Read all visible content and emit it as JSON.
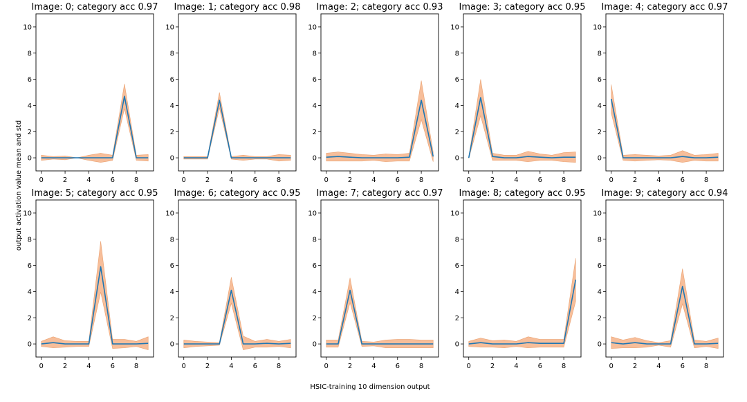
{
  "figure": {
    "xlabel": "HSIC-training 10 dimension output",
    "ylabel": "output activation value mean and std"
  },
  "colors": {
    "mean_line": "#1f77b4",
    "std_band": "#f4a878",
    "std_band_edge": "#e08040",
    "frame": "#000000"
  },
  "chart_data": [
    {
      "type": "line",
      "title": "Image: 0; category acc 0.97",
      "x": [
        0,
        1,
        2,
        3,
        4,
        5,
        6,
        7,
        8,
        9
      ],
      "xlim": [
        -0.45,
        9.45
      ],
      "ylim": [
        -1,
        11
      ],
      "xticks": [
        0,
        2,
        4,
        6,
        8
      ],
      "yticks": [
        0,
        2,
        4,
        6,
        8,
        10
      ],
      "series": [
        {
          "mean": [
            0,
            0,
            0,
            0,
            0,
            0,
            0,
            4.7,
            0,
            0
          ],
          "upper": [
            0.2,
            0.1,
            0.15,
            0,
            0.2,
            0.35,
            0.2,
            5.65,
            0.2,
            0.25
          ],
          "lower": [
            -0.2,
            -0.1,
            -0.15,
            0,
            -0.2,
            -0.35,
            -0.2,
            3.75,
            -0.2,
            -0.25
          ]
        }
      ]
    },
    {
      "type": "line",
      "title": "Image: 1; category acc 0.98",
      "x": [
        0,
        1,
        2,
        3,
        4,
        5,
        6,
        7,
        8,
        9
      ],
      "xlim": [
        -0.45,
        9.45
      ],
      "ylim": [
        -1,
        11
      ],
      "xticks": [
        0,
        2,
        4,
        6,
        8
      ],
      "yticks": [
        0,
        2,
        4,
        6,
        8,
        10
      ],
      "series": [
        {
          "mean": [
            0,
            0,
            0,
            4.4,
            0,
            0,
            0,
            0,
            0,
            0
          ],
          "upper": [
            0.1,
            0.1,
            0.1,
            5.0,
            0.1,
            0.2,
            0.1,
            0.1,
            0.25,
            0.2
          ],
          "lower": [
            -0.1,
            -0.1,
            -0.1,
            3.8,
            -0.1,
            -0.2,
            -0.1,
            -0.1,
            -0.25,
            -0.2
          ]
        }
      ]
    },
    {
      "type": "line",
      "title": "Image: 2; category acc 0.93",
      "x": [
        0,
        1,
        2,
        3,
        4,
        5,
        6,
        7,
        8,
        9
      ],
      "xlim": [
        -0.45,
        9.45
      ],
      "ylim": [
        -1,
        11
      ],
      "xticks": [
        0,
        2,
        4,
        6,
        8
      ],
      "yticks": [
        0,
        2,
        4,
        6,
        8,
        10
      ],
      "series": [
        {
          "mean": [
            0.05,
            0.1,
            0.05,
            0,
            0,
            0,
            0,
            0.05,
            4.4,
            0.1
          ],
          "upper": [
            0.35,
            0.45,
            0.35,
            0.25,
            0.2,
            0.3,
            0.25,
            0.35,
            5.9,
            0.45
          ],
          "lower": [
            -0.25,
            -0.25,
            -0.25,
            -0.25,
            -0.2,
            -0.3,
            -0.25,
            -0.25,
            2.9,
            -0.3
          ]
        }
      ]
    },
    {
      "type": "line",
      "title": "Image: 3; category acc 0.95",
      "x": [
        0,
        1,
        2,
        3,
        4,
        5,
        6,
        7,
        8,
        9
      ],
      "xlim": [
        -0.45,
        9.45
      ],
      "ylim": [
        -1,
        11
      ],
      "xticks": [
        0,
        2,
        4,
        6,
        8
      ],
      "yticks": [
        0,
        2,
        4,
        6,
        8,
        10
      ],
      "series": [
        {
          "mean": [
            0,
            4.6,
            0.1,
            0,
            0,
            0.1,
            0.05,
            0,
            0.05,
            0.05
          ],
          "upper": [
            0.05,
            6.0,
            0.35,
            0.2,
            0.2,
            0.5,
            0.3,
            0.2,
            0.4,
            0.45
          ],
          "lower": [
            -0.05,
            3.2,
            -0.2,
            -0.2,
            -0.2,
            -0.3,
            -0.2,
            -0.2,
            -0.3,
            -0.35
          ]
        }
      ]
    },
    {
      "type": "line",
      "title": "Image: 4; category acc 0.97",
      "x": [
        0,
        1,
        2,
        3,
        4,
        5,
        6,
        7,
        8,
        9
      ],
      "xlim": [
        -0.45,
        9.45
      ],
      "ylim": [
        -1,
        11
      ],
      "xticks": [
        0,
        2,
        4,
        6,
        8
      ],
      "yticks": [
        0,
        2,
        4,
        6,
        8,
        10
      ],
      "series": [
        {
          "mean": [
            4.5,
            0,
            0,
            0,
            0,
            0,
            0.1,
            0,
            0,
            0.05
          ],
          "upper": [
            5.6,
            0.2,
            0.25,
            0.2,
            0.15,
            0.2,
            0.55,
            0.2,
            0.25,
            0.35
          ],
          "lower": [
            3.4,
            -0.2,
            -0.25,
            -0.2,
            -0.15,
            -0.2,
            -0.35,
            -0.2,
            -0.25,
            -0.25
          ]
        }
      ]
    },
    {
      "type": "line",
      "title": "Image: 5; category acc 0.95",
      "x": [
        0,
        1,
        2,
        3,
        4,
        5,
        6,
        7,
        8,
        9
      ],
      "xlim": [
        -0.45,
        9.45
      ],
      "ylim": [
        -1,
        11
      ],
      "xticks": [
        0,
        2,
        4,
        6,
        8
      ],
      "yticks": [
        0,
        2,
        4,
        6,
        8,
        10
      ],
      "series": [
        {
          "mean": [
            0,
            0.1,
            0,
            0,
            0,
            5.9,
            0,
            0,
            0,
            0.05
          ],
          "upper": [
            0.2,
            0.55,
            0.25,
            0.2,
            0.2,
            7.85,
            0.35,
            0.35,
            0.2,
            0.55
          ],
          "lower": [
            -0.2,
            -0.3,
            -0.25,
            -0.2,
            -0.2,
            3.95,
            -0.35,
            -0.3,
            -0.2,
            -0.45
          ]
        }
      ]
    },
    {
      "type": "line",
      "title": "Image: 6; category acc 0.95",
      "x": [
        0,
        1,
        2,
        3,
        4,
        5,
        6,
        7,
        8,
        9
      ],
      "xlim": [
        -0.45,
        9.45
      ],
      "ylim": [
        -1,
        11
      ],
      "xticks": [
        0,
        2,
        4,
        6,
        8
      ],
      "yticks": [
        0,
        2,
        4,
        6,
        8,
        10
      ],
      "series": [
        {
          "mean": [
            0,
            0,
            0,
            0,
            4.1,
            0,
            0,
            0.05,
            0,
            0.05
          ],
          "upper": [
            0.3,
            0.2,
            0.15,
            0.1,
            5.1,
            0.6,
            0.2,
            0.35,
            0.2,
            0.35
          ],
          "lower": [
            -0.3,
            -0.2,
            -0.15,
            -0.1,
            3.1,
            -0.45,
            -0.25,
            -0.25,
            -0.2,
            -0.3
          ]
        }
      ]
    },
    {
      "type": "line",
      "title": "Image: 7; category acc 0.97",
      "x": [
        0,
        1,
        2,
        3,
        4,
        5,
        6,
        7,
        8,
        9
      ],
      "xlim": [
        -0.45,
        9.45
      ],
      "ylim": [
        -1,
        11
      ],
      "xticks": [
        0,
        2,
        4,
        6,
        8
      ],
      "yticks": [
        0,
        2,
        4,
        6,
        8,
        10
      ],
      "series": [
        {
          "mean": [
            0,
            0,
            4.1,
            0,
            0,
            0,
            0,
            0,
            0,
            0
          ],
          "upper": [
            0.3,
            0.3,
            5.05,
            0.2,
            0.15,
            0.3,
            0.35,
            0.35,
            0.3,
            0.3
          ],
          "lower": [
            -0.25,
            -0.25,
            3.15,
            -0.2,
            -0.15,
            -0.3,
            -0.3,
            -0.3,
            -0.3,
            -0.3
          ]
        }
      ]
    },
    {
      "type": "line",
      "title": "Image: 8; category acc 0.95",
      "x": [
        0,
        1,
        2,
        3,
        4,
        5,
        6,
        7,
        8,
        9
      ],
      "xlim": [
        -0.45,
        9.45
      ],
      "ylim": [
        -1,
        11
      ],
      "xticks": [
        0,
        2,
        4,
        6,
        8
      ],
      "yticks": [
        0,
        2,
        4,
        6,
        8,
        10
      ],
      "series": [
        {
          "mean": [
            0,
            0.1,
            0,
            0,
            0,
            0.1,
            0.05,
            0.05,
            0.05,
            4.9
          ],
          "upper": [
            0.2,
            0.45,
            0.25,
            0.3,
            0.2,
            0.55,
            0.35,
            0.35,
            0.35,
            6.55
          ],
          "lower": [
            -0.2,
            -0.25,
            -0.25,
            -0.3,
            -0.2,
            -0.3,
            -0.25,
            -0.25,
            -0.25,
            3.25
          ]
        }
      ]
    },
    {
      "type": "line",
      "title": "Image: 9; category acc 0.94",
      "x": [
        0,
        1,
        2,
        3,
        4,
        5,
        6,
        7,
        8,
        9
      ],
      "xlim": [
        -0.45,
        9.45
      ],
      "ylim": [
        -1,
        11
      ],
      "xticks": [
        0,
        2,
        4,
        6,
        8
      ],
      "yticks": [
        0,
        2,
        4,
        6,
        8,
        10
      ],
      "series": [
        {
          "mean": [
            0.1,
            0,
            0.1,
            0,
            0,
            0,
            4.4,
            0,
            0,
            0.05
          ],
          "upper": [
            0.55,
            0.3,
            0.5,
            0.25,
            0.1,
            0.25,
            5.75,
            0.3,
            0.2,
            0.45
          ],
          "lower": [
            -0.35,
            -0.3,
            -0.3,
            -0.25,
            -0.1,
            -0.25,
            3.05,
            -0.3,
            -0.2,
            -0.35
          ]
        }
      ]
    }
  ]
}
